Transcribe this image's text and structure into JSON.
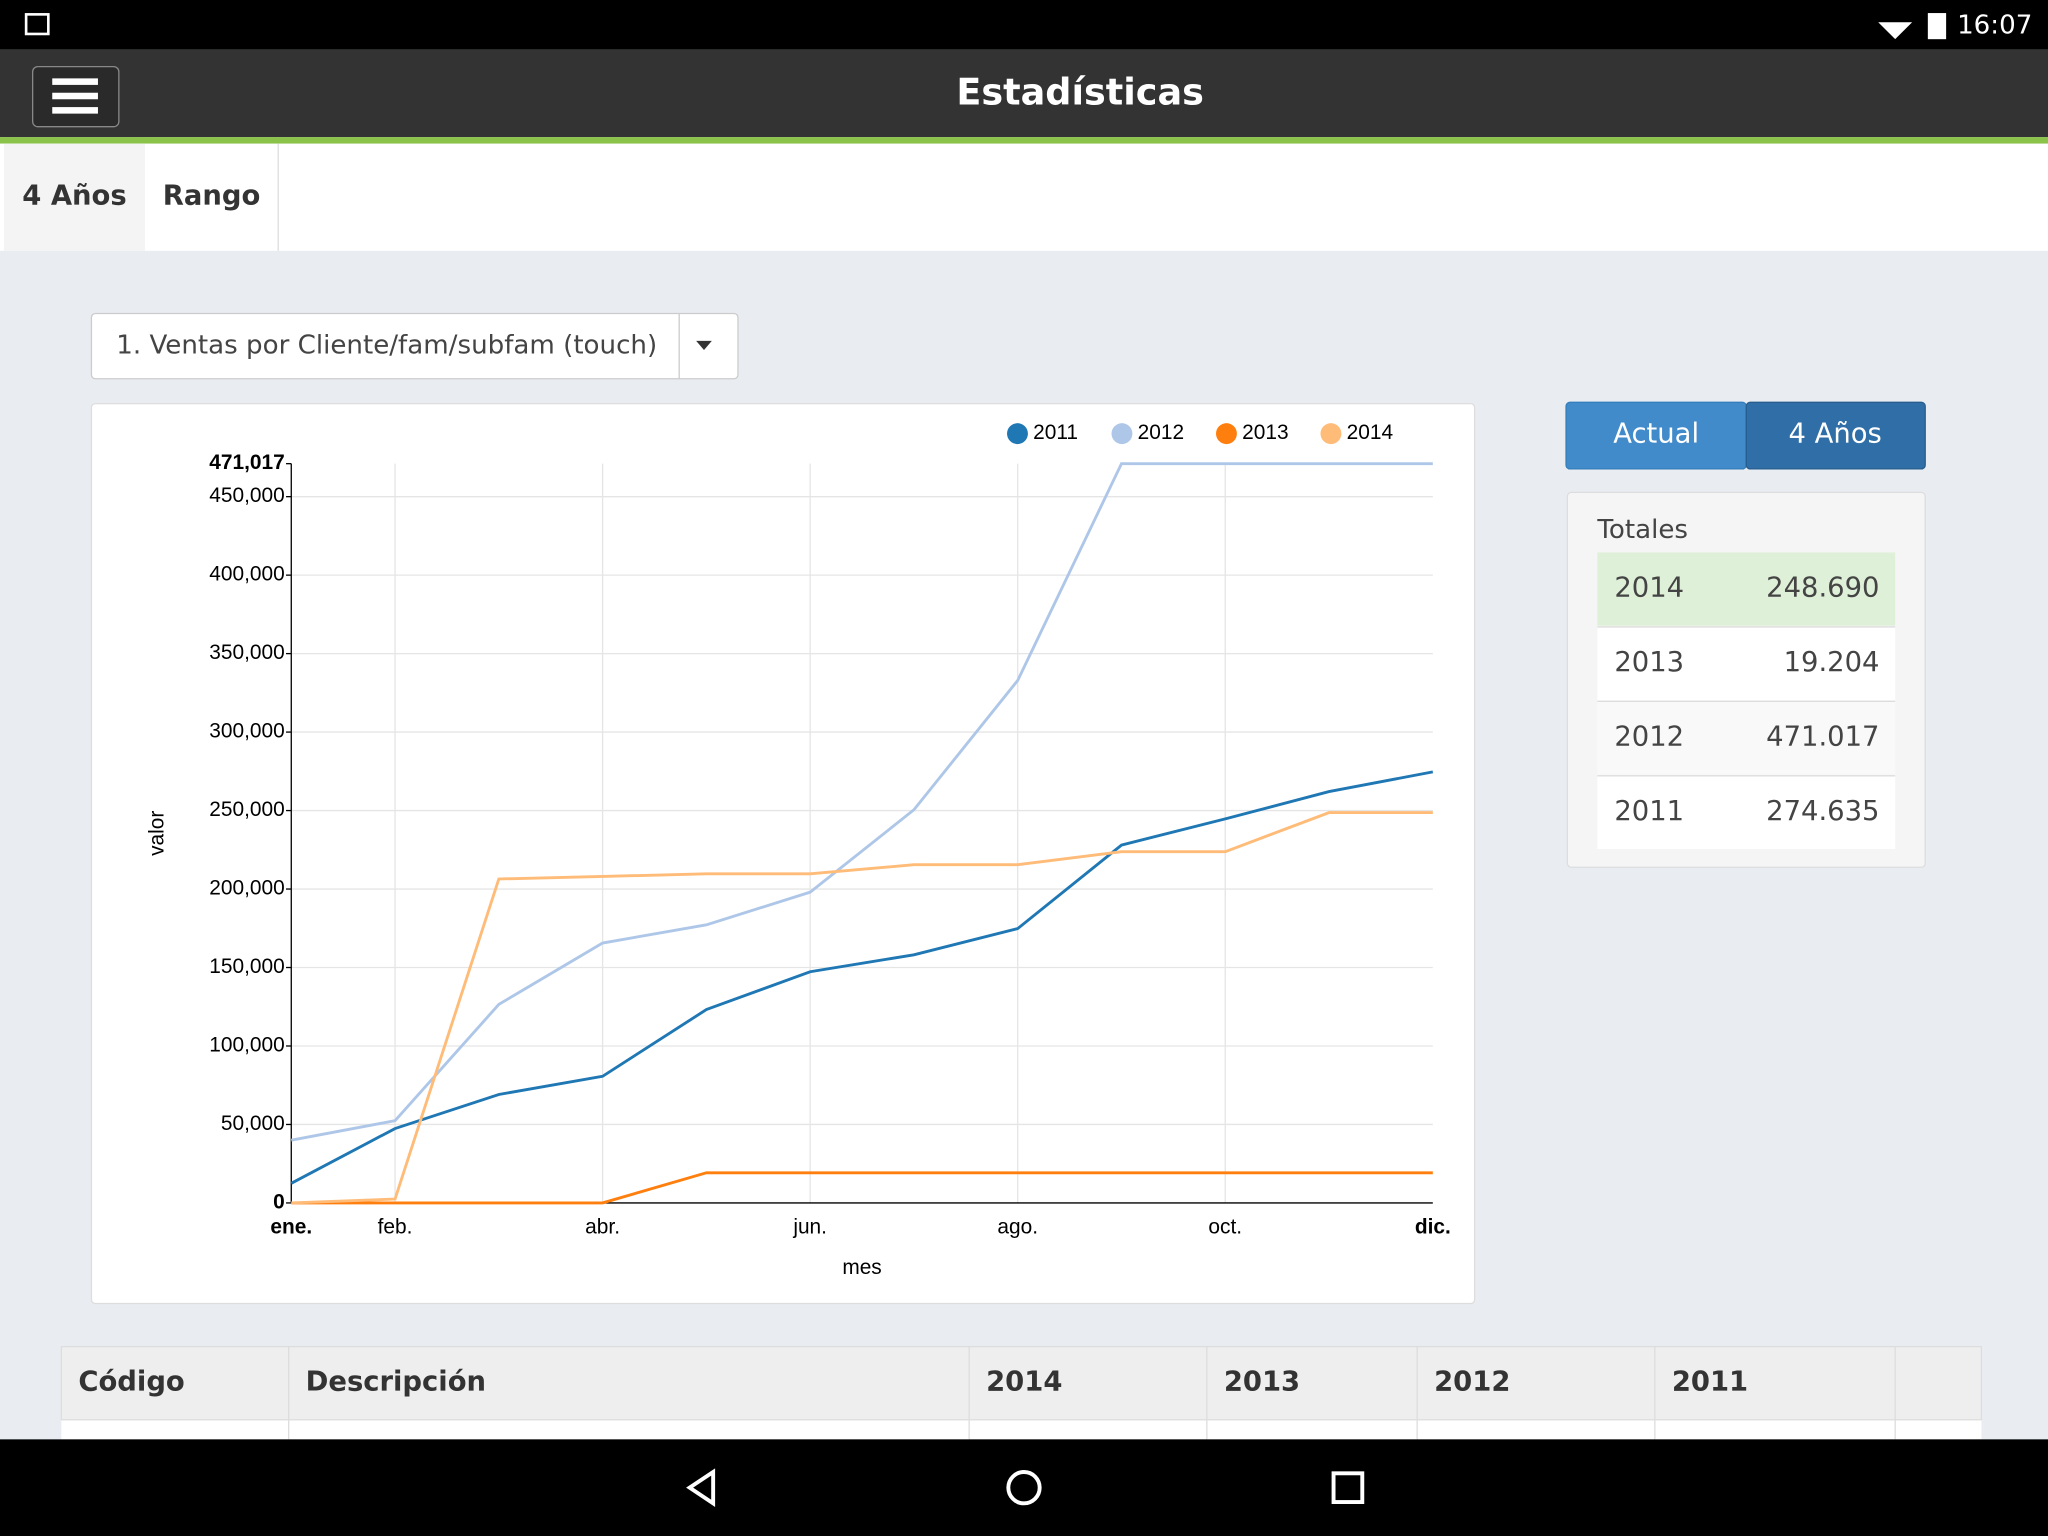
{
  "status_bar": {
    "time": "16:07"
  },
  "header": {
    "title": "Estadísticas"
  },
  "tabs": [
    "4 Años",
    "Rango"
  ],
  "dropdown": {
    "selected": "1. Ventas por Cliente/fam/subfam (touch)"
  },
  "view_buttons": [
    "Actual",
    "4 Años"
  ],
  "totals": {
    "title": "Totales",
    "rows": [
      [
        "2014",
        "248.690"
      ],
      [
        "2013",
        "19.204"
      ],
      [
        "2012",
        "471.017"
      ],
      [
        "2011",
        "274.635"
      ]
    ]
  },
  "table": {
    "headers": [
      "Código",
      "Descripción",
      "2014",
      "2013",
      "2012",
      "2011"
    ]
  },
  "chart_data": {
    "type": "line",
    "y_label": "valor",
    "x_label": "mes",
    "categories": [
      "ene.",
      "feb.",
      null,
      "abr.",
      null,
      "jun.",
      null,
      "ago.",
      null,
      "oct.",
      null,
      "dic."
    ],
    "ylim": [
      0,
      471017
    ],
    "yticks": [
      0,
      {
        "value": 50000,
        "label": "50,000"
      },
      {
        "value": 100000,
        "label": "100,000"
      },
      {
        "value": 150000,
        "label": "150,000"
      },
      {
        "value": 200000,
        "label": "200,000"
      },
      {
        "value": 250000,
        "label": "250,000"
      },
      {
        "value": 300000,
        "label": "300,000"
      },
      {
        "value": 350000,
        "label": "350,000"
      },
      {
        "value": 400000,
        "label": "400,000"
      },
      {
        "value": 450000,
        "label": "450,000"
      },
      {
        "value": 471017,
        "label": "471,017"
      }
    ],
    "grid": true,
    "series": [
      {
        "name": "2011",
        "color": "#1f77b4",
        "values": [
          12500,
          47400,
          69100,
          80700,
          123200,
          147300,
          158100,
          174800,
          228000,
          244700,
          262100,
          274635
        ]
      },
      {
        "name": "2012",
        "color": "#aec7e8",
        "values": [
          40000,
          52400,
          126500,
          165600,
          177200,
          198000,
          250500,
          332900,
          471017,
          471017,
          471017,
          471017
        ]
      },
      {
        "name": "2013",
        "color": "#ff7f0e",
        "values": [
          0,
          0,
          0,
          0,
          19204,
          19204,
          19204,
          19204,
          19204,
          19204,
          19204,
          19204
        ]
      },
      {
        "name": "2014",
        "color": "#ffbb78",
        "values": [
          0,
          2500,
          206400,
          208000,
          209700,
          209700,
          215500,
          215500,
          223800,
          223800,
          248690,
          248690
        ]
      }
    ]
  }
}
